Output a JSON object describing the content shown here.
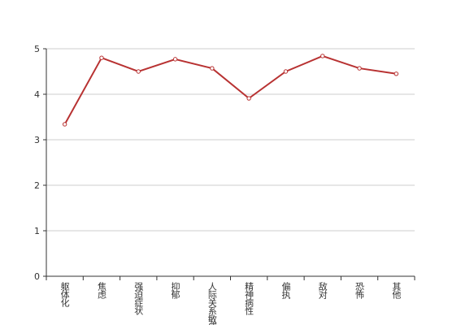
{
  "chart_data": {
    "type": "line",
    "categories": [
      "躯体化",
      "焦虑",
      "强迫症状",
      "抑郁",
      "人际关系敏感",
      "精神病性",
      "偏执",
      "敌对",
      "恐怖",
      "其他"
    ],
    "series": [
      {
        "color": "#b83232",
        "values": [
          3.34,
          4.8,
          4.5,
          4.77,
          4.57,
          3.91,
          4.5,
          4.84,
          4.57,
          4.45
        ]
      }
    ],
    "ylim": [
      0,
      5
    ],
    "yticks": [
      0,
      1,
      2,
      3,
      4,
      5
    ],
    "grid": true
  }
}
